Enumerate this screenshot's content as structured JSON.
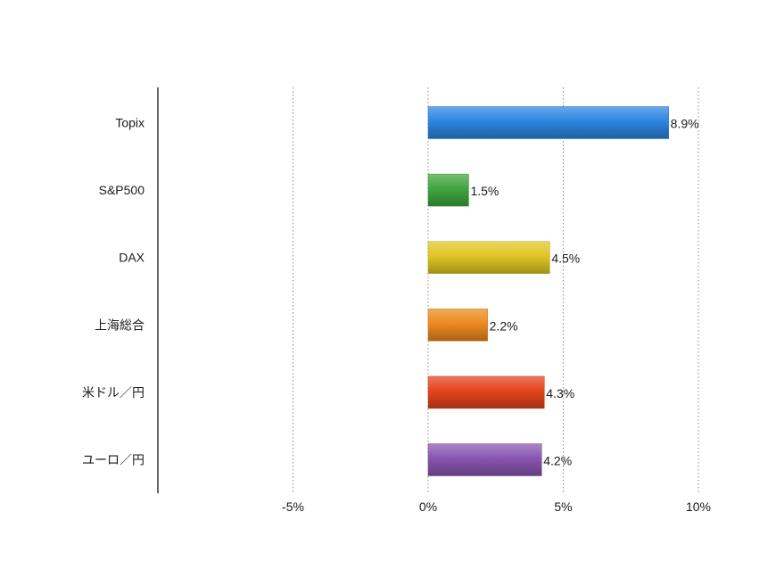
{
  "chart_data": {
    "type": "bar",
    "orientation": "horizontal",
    "categories": [
      "Topix",
      "S&P500",
      "DAX",
      "上海総合",
      "米ドル／円",
      "ユーロ／円"
    ],
    "values": [
      8.9,
      1.5,
      4.5,
      2.2,
      4.3,
      4.2
    ],
    "value_labels": [
      "8.9%",
      "1.5%",
      "4.5%",
      "2.2%",
      "4.3%",
      "4.2%"
    ],
    "colors": [
      "#2d86e0",
      "#3fa63f",
      "#e0c623",
      "#ec8a1e",
      "#e4441c",
      "#8a55b0"
    ],
    "xlim": [
      -10,
      10
    ],
    "x_ticks": [
      -5,
      0,
      5,
      10
    ],
    "x_tick_labels": [
      "-5%",
      "0%",
      "5%",
      "10%"
    ],
    "grid": "vertical dotted",
    "legend": "none"
  }
}
